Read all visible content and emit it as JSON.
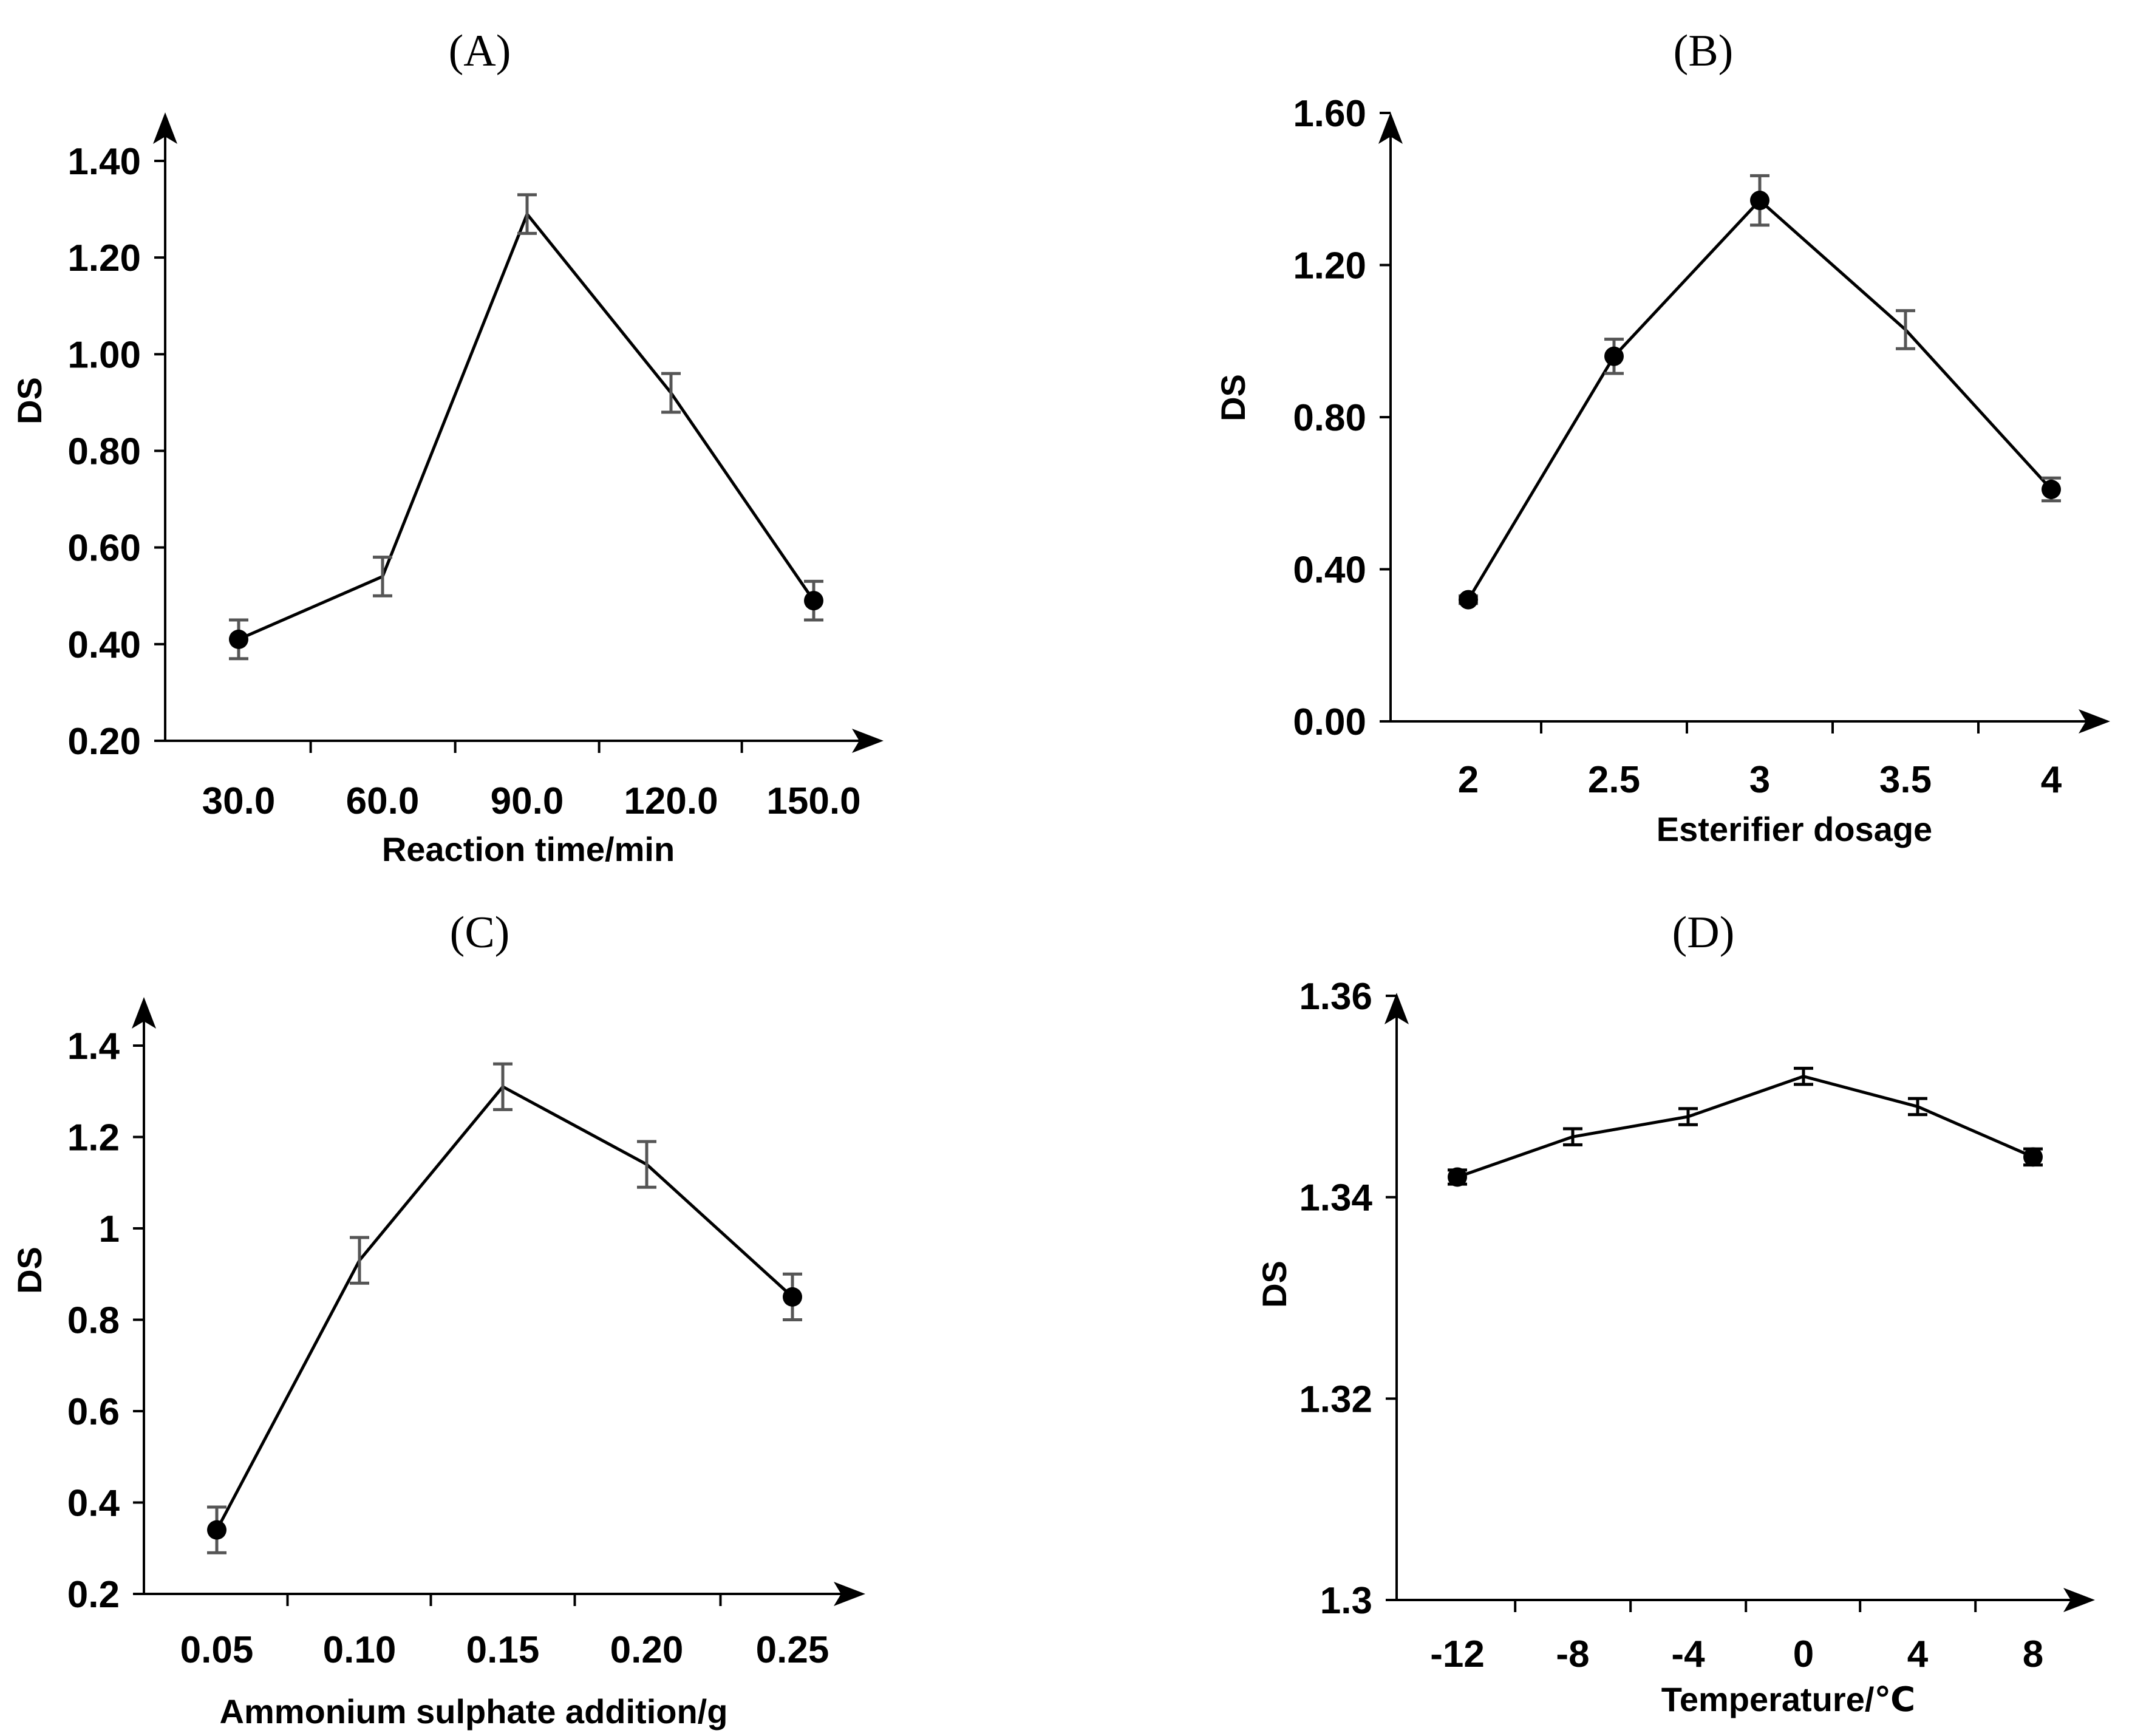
{
  "chart_data": [
    {
      "type": "line",
      "title": "(A)",
      "xlabel": "Reaction time/min",
      "ylabel": "DS",
      "categories": [
        "30.0",
        "60.0",
        "90.0",
        "120.0",
        "150.0"
      ],
      "y_ticks": [
        "0.20",
        "0.40",
        "0.60",
        "0.80",
        "1.00",
        "1.20",
        "1.40"
      ],
      "ylim": [
        0.2,
        1.4
      ],
      "series": [
        {
          "values": [
            0.41,
            0.54,
            1.29,
            0.92,
            0.49
          ],
          "error": [
            0.04,
            0.04,
            0.04,
            0.04,
            0.04
          ]
        }
      ],
      "markers": [
        true,
        false,
        false,
        false,
        true
      ],
      "grid": false
    },
    {
      "type": "line",
      "title": "(B)",
      "xlabel": "Esterifier dosage",
      "ylabel": "DS",
      "categories": [
        "2",
        "2.5",
        "3",
        "3.5",
        "4"
      ],
      "y_ticks": [
        "0.00",
        "0.40",
        "0.80",
        "1.20",
        "1.60"
      ],
      "ylim": [
        0,
        1.6
      ],
      "series": [
        {
          "values": [
            0.32,
            0.96,
            1.37,
            1.03,
            0.61
          ],
          "error": [
            0.01,
            0.045,
            0.065,
            0.05,
            0.03
          ]
        }
      ],
      "markers": [
        true,
        true,
        true,
        false,
        true
      ],
      "grid": false
    },
    {
      "type": "line",
      "title": "(C)",
      "xlabel": "Ammonium sulphate addition/g",
      "ylabel": "DS",
      "categories": [
        "0.05",
        "0.10",
        "0.15",
        "0.20",
        "0.25"
      ],
      "y_ticks": [
        "0.2",
        "0.4",
        "0.6",
        "0.8",
        "1",
        "1.2",
        "1.4"
      ],
      "ylim": [
        0.2,
        1.4
      ],
      "series": [
        {
          "values": [
            0.34,
            0.93,
            1.31,
            1.14,
            0.85
          ],
          "error": [
            0.05,
            0.05,
            0.05,
            0.05,
            0.05
          ]
        }
      ],
      "markers": [
        true,
        false,
        false,
        false,
        true
      ],
      "grid": false
    },
    {
      "type": "line",
      "title": "(D)",
      "xlabel": "Temperature/℃",
      "ylabel": "DS",
      "categories": [
        "-12",
        "-8",
        "-4",
        "0",
        "4",
        "8"
      ],
      "y_ticks": [
        "1.3",
        "1.32",
        "1.34",
        "1.36"
      ],
      "ylim": [
        1.3,
        1.36
      ],
      "series": [
        {
          "values": [
            1.342,
            1.346,
            1.348,
            1.352,
            1.349,
            1.344
          ],
          "error": [
            0.0007,
            0.0008,
            0.0008,
            0.0008,
            0.0008,
            0.0008
          ]
        }
      ],
      "markers": [
        true,
        false,
        false,
        false,
        false,
        true
      ],
      "grid": false
    }
  ]
}
